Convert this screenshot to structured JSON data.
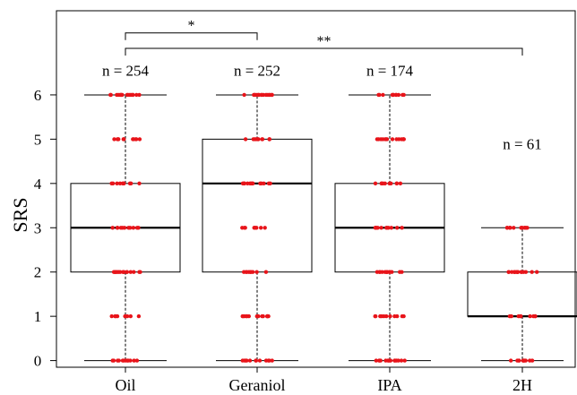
{
  "chart_data": {
    "type": "box",
    "ylabel": "SRS",
    "ylim": [
      -0.15,
      7.9
    ],
    "yticks": [
      0,
      1,
      2,
      3,
      4,
      5,
      6
    ],
    "categories": [
      "Oil",
      "Geraniol",
      "IPA",
      "2H"
    ],
    "n_labels": [
      "n = 254",
      "n = 252",
      "n = 174",
      "n = 61"
    ],
    "n_label_y": [
      6.55,
      6.55,
      6.55,
      4.9
    ],
    "boxes": [
      {
        "category": "Oil",
        "min": 0,
        "q1": 2,
        "median": 3,
        "q3": 4,
        "max": 6,
        "points": [
          0,
          1,
          2,
          3,
          4,
          5,
          6
        ]
      },
      {
        "category": "Geraniol",
        "min": 0,
        "q1": 2,
        "median": 4,
        "q3": 5,
        "max": 6,
        "points": [
          0,
          1,
          2,
          3,
          4,
          5,
          6
        ]
      },
      {
        "category": "IPA",
        "min": 0,
        "q1": 2,
        "median": 3,
        "q3": 4,
        "max": 6,
        "points": [
          0,
          1,
          2,
          3,
          4,
          5,
          6
        ]
      },
      {
        "category": "2H",
        "min": 0,
        "q1": 1,
        "median": 1,
        "q3": 2,
        "max": 3,
        "points": [
          0,
          1,
          2,
          3
        ]
      }
    ],
    "significance": [
      {
        "from": "Oil",
        "to": "Geraniol",
        "label": "*",
        "level": 7.4
      },
      {
        "from": "Oil",
        "to": "2H",
        "label": "**",
        "level": 7.05
      }
    ],
    "colors": {
      "points": "#e8141a",
      "box": "#000000",
      "frame": "#000000"
    }
  }
}
